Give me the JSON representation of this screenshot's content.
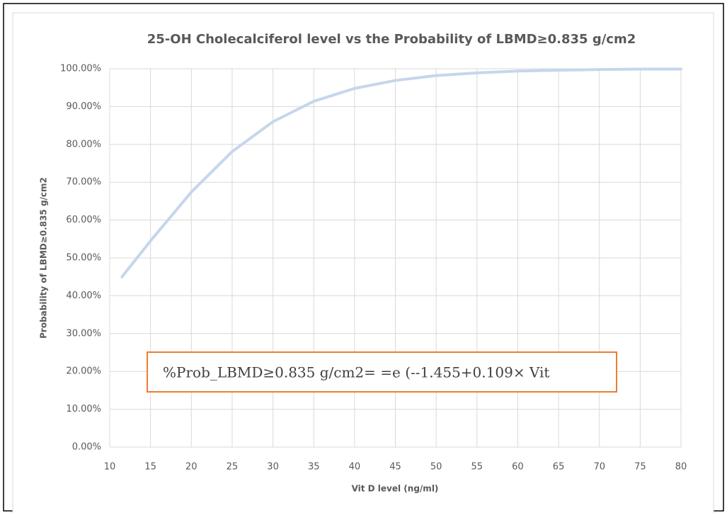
{
  "chart_data": {
    "type": "line",
    "title": "25-OH Cholecalciferol  level vs the Probability  of  LBMD≥0.835  g/cm2",
    "x_label": "Vit D level (ng/ml)",
    "y_label": "Probability of LBMD≥0.835 g/cm2",
    "annotation": "%Prob_LBMD≥0.835  g/cm2= =e  (--1.455+0.109×  Vit",
    "x": [
      11.5,
      15,
      20,
      25,
      30,
      35,
      40,
      45,
      50,
      55,
      60,
      65,
      70,
      75,
      80
    ],
    "series": [
      {
        "name": "Probability",
        "color": "#c6d6ec",
        "values": [
          45.0,
          54.5,
          67.4,
          78.1,
          86.0,
          91.4,
          94.8,
          96.9,
          98.2,
          98.9,
          99.4,
          99.6,
          99.8,
          99.9,
          99.9
        ]
      }
    ],
    "xlim": [
      10,
      80
    ],
    "xticks": [
      10,
      15,
      20,
      25,
      30,
      35,
      40,
      45,
      50,
      55,
      60,
      65,
      70,
      75,
      80
    ],
    "ylim": [
      0,
      100
    ],
    "yticks": [
      {
        "value": 0,
        "label": "0.00%"
      },
      {
        "value": 10,
        "label": "10.00%"
      },
      {
        "value": 20,
        "label": "20.00%"
      },
      {
        "value": 30,
        "label": "30.00%"
      },
      {
        "value": 40,
        "label": "40.00%"
      },
      {
        "value": 50,
        "label": "50.00%"
      },
      {
        "value": 60,
        "label": "60.00%"
      },
      {
        "value": 70,
        "label": "70.00%"
      },
      {
        "value": 80,
        "label": "80.00%"
      },
      {
        "value": 90,
        "label": "90.00%"
      },
      {
        "value": 100,
        "label": "100.00%"
      }
    ],
    "grid": true
  }
}
